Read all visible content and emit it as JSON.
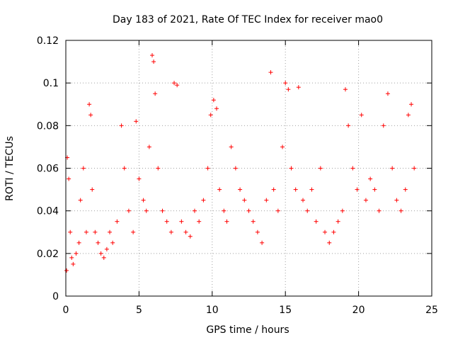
{
  "chart_data": {
    "type": "scatter",
    "title": "Day 183 of 2021, Rate Of TEC Index for receiver mao0",
    "xlabel": "GPS time / hours",
    "ylabel": "ROTI / TECUs",
    "xlim": [
      0,
      25
    ],
    "ylim": [
      0,
      0.12
    ],
    "x_ticks": [
      "0",
      "5",
      "10",
      "15",
      "20",
      "25"
    ],
    "y_ticks": [
      "0",
      "0.02",
      "0.04",
      "0.06",
      "0.08",
      "0.1",
      "0.12"
    ],
    "grid": true,
    "marker": "+",
    "colors": {
      "series": "#ff0000",
      "axis": "#000000",
      "grid": "#a0a0a0"
    },
    "series": [
      {
        "x": [
          0.05,
          0.1,
          0.2,
          0.3,
          0.4,
          0.5,
          0.7,
          0.9,
          1.0,
          1.2,
          1.4,
          1.6,
          1.7,
          1.8,
          2.0,
          2.2,
          2.4,
          2.6,
          2.8,
          3.0,
          3.2,
          3.5,
          3.8,
          4.0,
          4.3,
          4.6,
          4.8,
          5.0,
          5.3,
          5.5,
          5.7,
          5.9,
          6.0,
          6.1,
          6.3,
          6.6,
          6.9,
          7.2,
          7.4,
          7.6,
          7.9,
          8.2,
          8.5,
          8.8,
          9.1,
          9.4,
          9.7,
          9.9,
          10.1,
          10.3,
          10.5,
          10.8,
          11.0,
          11.3,
          11.6,
          11.9,
          12.2,
          12.5,
          12.8,
          13.1,
          13.4,
          13.7,
          14.0,
          14.2,
          14.5,
          14.8,
          15.0,
          15.2,
          15.4,
          15.7,
          15.9,
          16.2,
          16.5,
          16.8,
          17.1,
          17.4,
          17.7,
          18.0,
          18.3,
          18.6,
          18.9,
          19.1,
          19.3,
          19.6,
          19.9,
          20.2,
          20.5,
          20.8,
          21.1,
          21.4,
          21.7,
          22.0,
          22.3,
          22.6,
          22.9,
          23.2,
          23.4,
          23.6,
          23.8
        ],
        "y": [
          0.012,
          0.065,
          0.055,
          0.03,
          0.018,
          0.015,
          0.02,
          0.025,
          0.045,
          0.06,
          0.03,
          0.09,
          0.085,
          0.05,
          0.03,
          0.025,
          0.02,
          0.018,
          0.022,
          0.03,
          0.025,
          0.035,
          0.08,
          0.06,
          0.04,
          0.03,
          0.082,
          0.055,
          0.045,
          0.04,
          0.07,
          0.113,
          0.11,
          0.095,
          0.06,
          0.04,
          0.035,
          0.03,
          0.1,
          0.099,
          0.035,
          0.03,
          0.028,
          0.04,
          0.035,
          0.045,
          0.06,
          0.085,
          0.092,
          0.088,
          0.05,
          0.04,
          0.035,
          0.07,
          0.06,
          0.05,
          0.045,
          0.04,
          0.035,
          0.03,
          0.025,
          0.045,
          0.105,
          0.05,
          0.04,
          0.07,
          0.1,
          0.097,
          0.06,
          0.05,
          0.098,
          0.045,
          0.04,
          0.05,
          0.035,
          0.06,
          0.03,
          0.025,
          0.03,
          0.035,
          0.04,
          0.097,
          0.08,
          0.06,
          0.05,
          0.085,
          0.045,
          0.055,
          0.05,
          0.04,
          0.08,
          0.095,
          0.06,
          0.045,
          0.04,
          0.05,
          0.085,
          0.09,
          0.06
        ]
      }
    ]
  }
}
